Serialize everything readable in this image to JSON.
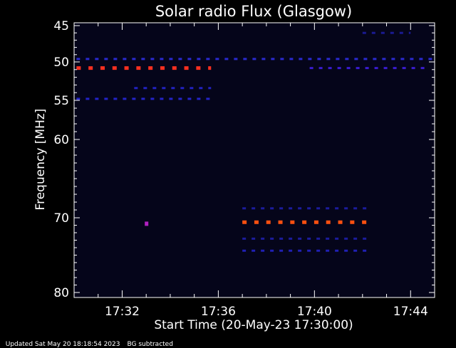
{
  "chart_data": {
    "type": "heatmap",
    "title": "Solar radio Flux (Glasgow)",
    "xlabel": "Start Time (20-May-23 17:30:00)",
    "ylabel": "Frequency [MHz]",
    "xlim_minutes": [
      0,
      15
    ],
    "ylim_mhz": [
      45,
      80
    ],
    "y_ticks": [
      "45",
      "50",
      "55",
      "60",
      "70",
      "80"
    ],
    "y_tick_values": [
      45,
      50,
      55,
      60,
      70,
      80
    ],
    "x_ticks": [
      "17:32",
      "17:36",
      "17:40",
      "17:44"
    ],
    "x_tick_values": [
      2,
      6,
      10,
      14
    ],
    "grid": false,
    "background_color": "#05051a",
    "bands": [
      {
        "freq_mhz": 49.6,
        "t_start": 0.1,
        "t_end": 15.0,
        "intensity": "low",
        "color": "#2a2ad0"
      },
      {
        "freq_mhz": 50.8,
        "t_start": 0.1,
        "t_end": 5.7,
        "intensity": "high",
        "color": "#ff3020"
      },
      {
        "freq_mhz": 50.8,
        "t_start": 9.8,
        "t_end": 14.8,
        "intensity": "medium",
        "color": "#3a1cd0"
      },
      {
        "freq_mhz": 53.4,
        "t_start": 2.5,
        "t_end": 5.7,
        "intensity": "low",
        "color": "#2222c0"
      },
      {
        "freq_mhz": 54.8,
        "t_start": 0.1,
        "t_end": 5.7,
        "intensity": "low",
        "color": "#2424c8"
      },
      {
        "freq_mhz": 46.0,
        "t_start": 12.0,
        "t_end": 14.0,
        "intensity": "low",
        "color": "#1a1a90"
      },
      {
        "freq_mhz": 68.8,
        "t_start": 7.0,
        "t_end": 12.3,
        "intensity": "low",
        "color": "#1c1c9c"
      },
      {
        "freq_mhz": 70.6,
        "t_start": 7.0,
        "t_end": 12.3,
        "intensity": "high",
        "color": "#ff5010"
      },
      {
        "freq_mhz": 72.8,
        "t_start": 7.0,
        "t_end": 12.3,
        "intensity": "low",
        "color": "#1c1c9c"
      },
      {
        "freq_mhz": 74.4,
        "t_start": 7.0,
        "t_end": 12.3,
        "intensity": "low",
        "color": "#2020b4"
      }
    ],
    "points": [
      {
        "freq_mhz": 70.8,
        "t": 3.0,
        "color": "#b020c0"
      }
    ]
  },
  "footer": {
    "updated": "Updated Sat May 20 18:18:54 2023",
    "note": "BG subtracted"
  }
}
